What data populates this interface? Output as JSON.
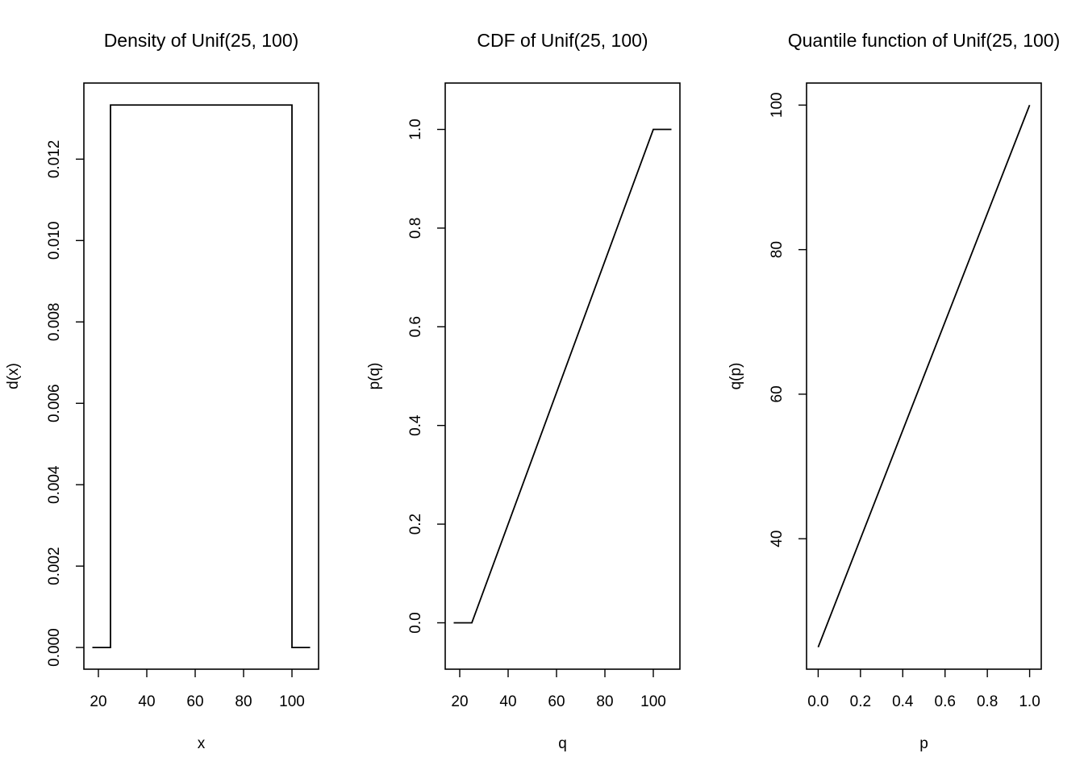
{
  "chart_data": [
    {
      "type": "line",
      "title": "Density of Unif(25, 100)",
      "xlabel": "x",
      "ylabel": "d(x)",
      "xlim": [
        14.0,
        111.0
      ],
      "ylim": [
        -0.000533,
        0.01387
      ],
      "x_ticks": [
        20,
        40,
        60,
        80,
        100
      ],
      "x_tick_labels": [
        "20",
        "40",
        "60",
        "80",
        "100"
      ],
      "y_ticks": [
        0.0,
        0.002,
        0.004,
        0.006,
        0.008,
        0.01,
        0.012
      ],
      "y_tick_labels": [
        "0.000",
        "0.002",
        "0.004",
        "0.006",
        "0.008",
        "0.010",
        "0.012"
      ],
      "grid": false,
      "series": [
        {
          "x": [
            17.5,
            25,
            25,
            100,
            100,
            107.5
          ],
          "y": [
            0,
            0,
            0.01333,
            0.01333,
            0,
            0
          ]
        }
      ]
    },
    {
      "type": "line",
      "title": "CDF of Unif(25, 100)",
      "xlabel": "q",
      "ylabel": "p(q)",
      "xlim": [
        14.0,
        111.0
      ],
      "ylim": [
        -0.094,
        1.094
      ],
      "x_ticks": [
        20,
        40,
        60,
        80,
        100
      ],
      "x_tick_labels": [
        "20",
        "40",
        "60",
        "80",
        "100"
      ],
      "y_ticks": [
        0.0,
        0.2,
        0.4,
        0.6,
        0.8,
        1.0
      ],
      "y_tick_labels": [
        "0.0",
        "0.2",
        "0.4",
        "0.6",
        "0.8",
        "1.0"
      ],
      "grid": false,
      "series": [
        {
          "x": [
            17.5,
            25,
            100,
            107.5
          ],
          "y": [
            0,
            0,
            1,
            1
          ]
        }
      ]
    },
    {
      "type": "line",
      "title": "Quantile function of Unif(25, 100)",
      "xlabel": "p",
      "ylabel": "q(p)",
      "xlim": [
        -0.055,
        1.055
      ],
      "ylim": [
        21.95,
        103.05
      ],
      "x_ticks": [
        0.0,
        0.2,
        0.4,
        0.6,
        0.8,
        1.0
      ],
      "x_tick_labels": [
        "0.0",
        "0.2",
        "0.4",
        "0.6",
        "0.8",
        "1.0"
      ],
      "y_ticks": [
        40,
        60,
        80,
        100
      ],
      "y_tick_labels": [
        "40",
        "60",
        "80",
        "100"
      ],
      "grid": false,
      "series": [
        {
          "x": [
            0,
            1
          ],
          "y": [
            25,
            100
          ]
        }
      ]
    }
  ]
}
